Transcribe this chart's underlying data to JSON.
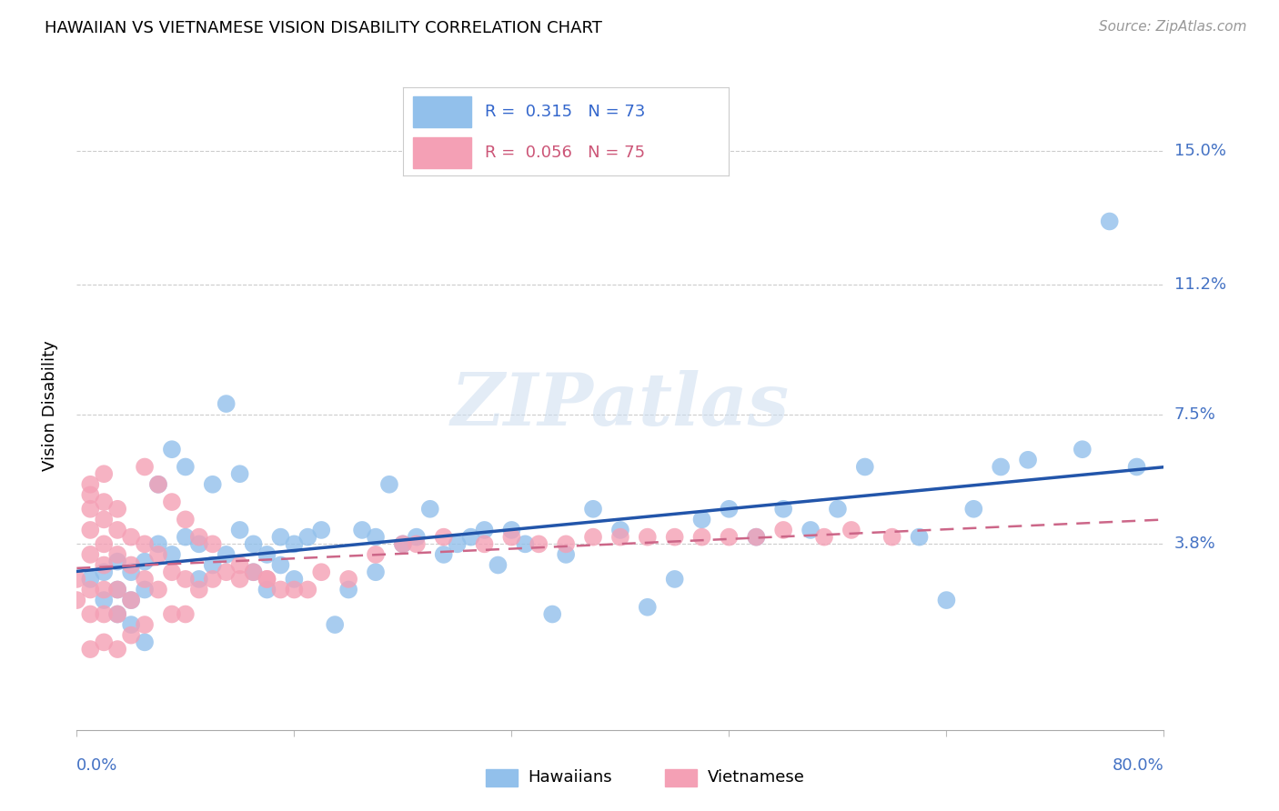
{
  "title": "HAWAIIAN VS VIETNAMESE VISION DISABILITY CORRELATION CHART",
  "source": "Source: ZipAtlas.com",
  "ylabel": "Vision Disability",
  "ytick_labels": [
    "15.0%",
    "11.2%",
    "7.5%",
    "3.8%"
  ],
  "ytick_values": [
    0.15,
    0.112,
    0.075,
    0.038
  ],
  "xlim": [
    0.0,
    0.8
  ],
  "ylim": [
    -0.015,
    0.17
  ],
  "hawaiian_color": "#92c0eb",
  "vietnamese_color": "#f4a0b5",
  "hawaiian_line_color": "#2255aa",
  "vietnamese_line_color": "#cc6688",
  "legend_R_hawaiian": "0.315",
  "legend_N_hawaiian": "73",
  "legend_R_vietnamese": "0.056",
  "legend_N_vietnamese": "75",
  "watermark": "ZIPatlas",
  "hawaiian_x": [
    0.01,
    0.02,
    0.02,
    0.03,
    0.03,
    0.03,
    0.04,
    0.04,
    0.04,
    0.05,
    0.05,
    0.05,
    0.06,
    0.06,
    0.07,
    0.07,
    0.08,
    0.08,
    0.09,
    0.09,
    0.1,
    0.1,
    0.11,
    0.11,
    0.12,
    0.12,
    0.13,
    0.13,
    0.14,
    0.14,
    0.15,
    0.15,
    0.16,
    0.16,
    0.17,
    0.18,
    0.19,
    0.2,
    0.21,
    0.22,
    0.22,
    0.23,
    0.24,
    0.25,
    0.26,
    0.27,
    0.28,
    0.29,
    0.3,
    0.31,
    0.32,
    0.33,
    0.35,
    0.36,
    0.38,
    0.4,
    0.42,
    0.44,
    0.46,
    0.48,
    0.5,
    0.52,
    0.54,
    0.56,
    0.58,
    0.62,
    0.64,
    0.66,
    0.68,
    0.7,
    0.74,
    0.76,
    0.78
  ],
  "hawaiian_y": [
    0.028,
    0.03,
    0.022,
    0.033,
    0.025,
    0.018,
    0.03,
    0.022,
    0.015,
    0.033,
    0.025,
    0.01,
    0.055,
    0.038,
    0.065,
    0.035,
    0.06,
    0.04,
    0.038,
    0.028,
    0.055,
    0.032,
    0.078,
    0.035,
    0.058,
    0.042,
    0.038,
    0.03,
    0.035,
    0.025,
    0.04,
    0.032,
    0.038,
    0.028,
    0.04,
    0.042,
    0.015,
    0.025,
    0.042,
    0.04,
    0.03,
    0.055,
    0.038,
    0.04,
    0.048,
    0.035,
    0.038,
    0.04,
    0.042,
    0.032,
    0.042,
    0.038,
    0.018,
    0.035,
    0.048,
    0.042,
    0.02,
    0.028,
    0.045,
    0.048,
    0.04,
    0.048,
    0.042,
    0.048,
    0.06,
    0.04,
    0.022,
    0.048,
    0.06,
    0.062,
    0.065,
    0.13,
    0.06
  ],
  "vietnamese_x": [
    0.0,
    0.0,
    0.01,
    0.01,
    0.01,
    0.01,
    0.01,
    0.01,
    0.01,
    0.01,
    0.02,
    0.02,
    0.02,
    0.02,
    0.02,
    0.02,
    0.02,
    0.02,
    0.03,
    0.03,
    0.03,
    0.03,
    0.03,
    0.03,
    0.04,
    0.04,
    0.04,
    0.04,
    0.05,
    0.05,
    0.05,
    0.06,
    0.06,
    0.07,
    0.07,
    0.08,
    0.08,
    0.09,
    0.1,
    0.11,
    0.12,
    0.13,
    0.14,
    0.15,
    0.16,
    0.17,
    0.18,
    0.2,
    0.22,
    0.24,
    0.25,
    0.27,
    0.3,
    0.32,
    0.34,
    0.36,
    0.38,
    0.4,
    0.42,
    0.44,
    0.46,
    0.48,
    0.5,
    0.52,
    0.55,
    0.57,
    0.6,
    0.05,
    0.06,
    0.07,
    0.08,
    0.09,
    0.1,
    0.12,
    0.14
  ],
  "vietnamese_y": [
    0.028,
    0.022,
    0.055,
    0.052,
    0.048,
    0.042,
    0.035,
    0.025,
    0.018,
    0.008,
    0.058,
    0.05,
    0.045,
    0.038,
    0.032,
    0.025,
    0.018,
    0.01,
    0.048,
    0.042,
    0.035,
    0.025,
    0.018,
    0.008,
    0.04,
    0.032,
    0.022,
    0.012,
    0.038,
    0.028,
    0.015,
    0.035,
    0.025,
    0.03,
    0.018,
    0.028,
    0.018,
    0.025,
    0.028,
    0.03,
    0.028,
    0.03,
    0.028,
    0.025,
    0.025,
    0.025,
    0.03,
    0.028,
    0.035,
    0.038,
    0.038,
    0.04,
    0.038,
    0.04,
    0.038,
    0.038,
    0.04,
    0.04,
    0.04,
    0.04,
    0.04,
    0.04,
    0.04,
    0.042,
    0.04,
    0.042,
    0.04,
    0.06,
    0.055,
    0.05,
    0.045,
    0.04,
    0.038,
    0.032,
    0.028
  ]
}
